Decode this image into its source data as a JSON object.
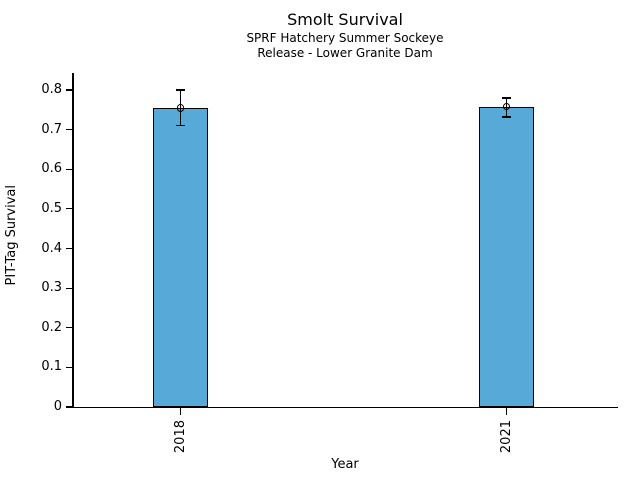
{
  "chart_data": {
    "type": "bar",
    "title": "Smolt Survival",
    "subtitle": [
      "SPRF Hatchery Summer Sockeye",
      "Release - Lower Granite Dam"
    ],
    "xlabel": "Year",
    "ylabel": "PIT-Tag Survival",
    "categories": [
      "2018",
      "2021"
    ],
    "values": [
      0.755,
      0.758
    ],
    "error_low": [
      0.71,
      0.732
    ],
    "error_high": [
      0.8,
      0.78
    ],
    "yticks": [
      0,
      0.1,
      0.2,
      0.3,
      0.4,
      0.5,
      0.6,
      0.7,
      0.8
    ],
    "ytick_labels": [
      "0",
      "0.1",
      "0.2",
      "0.3",
      "0.4",
      "0.5",
      "0.6",
      "0.7",
      "0.8"
    ],
    "ylim": [
      0,
      0.84
    ],
    "grid": false,
    "legend": null,
    "bar_color": "#57a9d7",
    "bar_edge_color": "#000000",
    "error_color": "#000000",
    "marker": "open-circle"
  }
}
